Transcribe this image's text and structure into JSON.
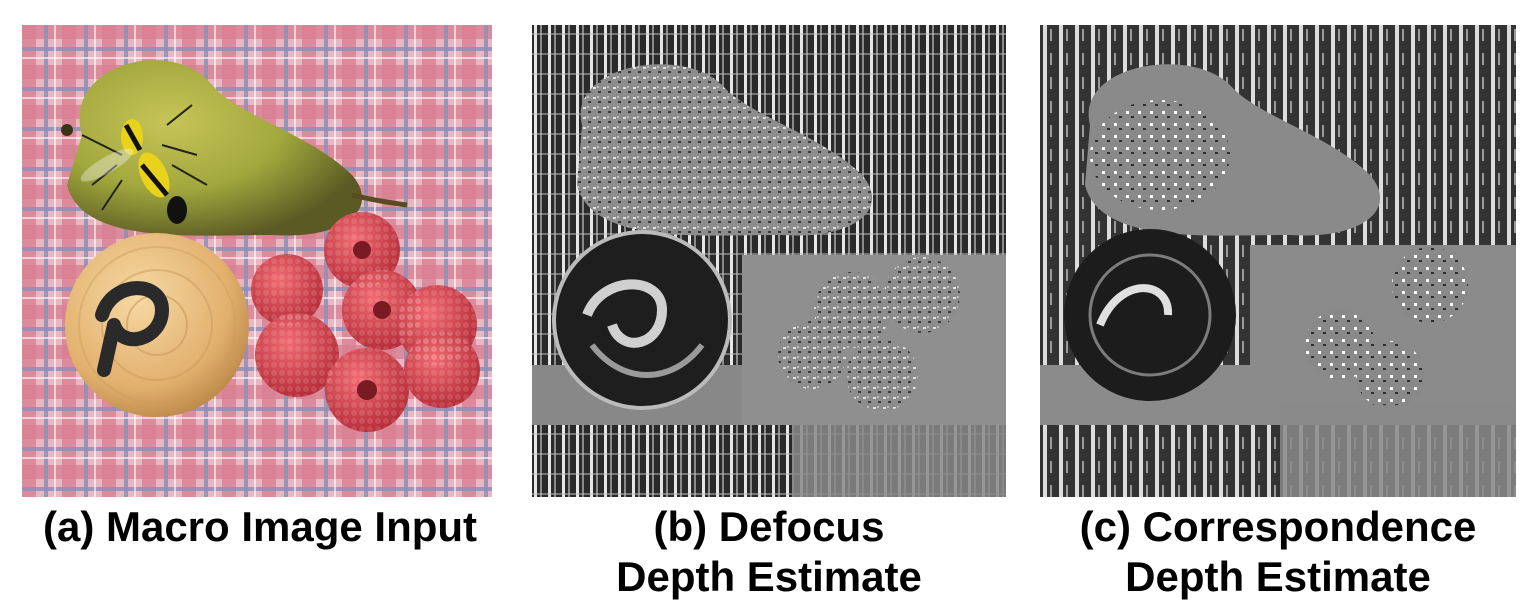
{
  "figure": {
    "panels": [
      {
        "caption_line1": "(a) Macro Image Input",
        "caption_line2": ""
      },
      {
        "caption_line1": "(b) Defocus",
        "caption_line2": "Depth Estimate"
      },
      {
        "caption_line1": "(c) Correspondence",
        "caption_line2": "Depth Estimate"
      }
    ],
    "scene_objects": [
      "pear",
      "wasp",
      "wooden-ball",
      "raspberries",
      "checkered-tablecloth"
    ],
    "colors": {
      "tablecloth_pink": "#d98a9a",
      "tablecloth_light": "#ecc3cc",
      "tablecloth_blue": "#8d8fb5",
      "pear_green": "#a9b24a",
      "pear_dark": "#6e6a2e",
      "wood": "#e6b877",
      "raspberry": "#d9464f",
      "depth_gray": "#8a8a8a"
    }
  }
}
